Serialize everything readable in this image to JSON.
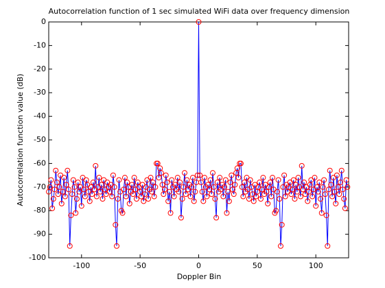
{
  "chart_data": {
    "type": "line",
    "title": "Autocorrelation function of 1 sec simulated WiFi data over frequency dimension",
    "x_label": "Doppler Bin",
    "y_label": "Autocorrelation function value (dB)",
    "x": [
      -128,
      -127,
      -126,
      -125,
      -124,
      -123,
      -122,
      -121,
      -120,
      -119,
      -118,
      -117,
      -116,
      -115,
      -114,
      -113,
      -112,
      -111,
      -110,
      -109,
      -108,
      -107,
      -106,
      -105,
      -104,
      -103,
      -102,
      -101,
      -100,
      -99,
      -98,
      -97,
      -96,
      -95,
      -94,
      -93,
      -92,
      -91,
      -90,
      -89,
      -88,
      -87,
      -86,
      -85,
      -84,
      -83,
      -82,
      -81,
      -80,
      -79,
      -78,
      -77,
      -76,
      -75,
      -74,
      -73,
      -72,
      -71,
      -70,
      -69,
      -68,
      -67,
      -66,
      -65,
      -64,
      -63,
      -62,
      -61,
      -60,
      -59,
      -58,
      -57,
      -56,
      -55,
      -54,
      -53,
      -52,
      -51,
      -50,
      -49,
      -48,
      -47,
      -46,
      -45,
      -44,
      -43,
      -42,
      -41,
      -40,
      -39,
      -38,
      -37,
      -36,
      -35,
      -34,
      -33,
      -32,
      -31,
      -30,
      -29,
      -28,
      -27,
      -26,
      -25,
      -24,
      -23,
      -22,
      -21,
      -20,
      -19,
      -18,
      -17,
      -16,
      -15,
      -14,
      -13,
      -12,
      -11,
      -10,
      -9,
      -8,
      -7,
      -6,
      -5,
      -4,
      -3,
      -2,
      -1,
      0,
      1,
      2,
      3,
      4,
      5,
      6,
      7,
      8,
      9,
      10,
      11,
      12,
      13,
      14,
      15,
      16,
      17,
      18,
      19,
      20,
      21,
      22,
      23,
      24,
      25,
      26,
      27,
      28,
      29,
      30,
      31,
      32,
      33,
      34,
      35,
      36,
      37,
      38,
      39,
      40,
      41,
      42,
      43,
      44,
      45,
      46,
      47,
      48,
      49,
      50,
      51,
      52,
      53,
      54,
      55,
      56,
      57,
      58,
      59,
      60,
      61,
      62,
      63,
      64,
      65,
      66,
      67,
      68,
      69,
      70,
      71,
      72,
      73,
      74,
      75,
      76,
      77,
      78,
      79,
      80,
      81,
      82,
      83,
      84,
      85,
      86,
      87,
      88,
      89,
      90,
      91,
      92,
      93,
      94,
      95,
      96,
      97,
      98,
      99,
      100,
      101,
      102,
      103,
      104,
      105,
      106,
      107,
      108,
      109,
      110,
      111,
      112,
      113,
      114,
      115,
      116,
      117,
      118,
      119,
      120,
      121,
      122,
      123,
      124,
      125,
      126,
      127
    ],
    "series": [
      {
        "color": "#0000ff",
        "marker_color": "#ff0000",
        "values": [
          -72,
          -70,
          -67,
          -79,
          -75,
          -71,
          -63,
          -68,
          -73,
          -70,
          -65,
          -77,
          -72,
          -66,
          -74,
          -69,
          -63,
          -71,
          -95,
          -82,
          -73,
          -67,
          -70,
          -81,
          -75,
          -68,
          -72,
          -70,
          -78,
          -66,
          -71,
          -74,
          -67,
          -69,
          -72,
          -76,
          -70,
          -73,
          -68,
          -71,
          -61,
          -74,
          -70,
          -66,
          -72,
          -69,
          -75,
          -67,
          -71,
          -73,
          -68,
          -70,
          -72,
          -69,
          -74,
          -65,
          -70,
          -86,
          -95,
          -75,
          -67,
          -72,
          -80,
          -81,
          -71,
          -66,
          -74,
          -68,
          -70,
          -77,
          -72,
          -69,
          -73,
          -66,
          -71,
          -75,
          -68,
          -70,
          -72,
          -74,
          -69,
          -76,
          -73,
          -70,
          -67,
          -75,
          -71,
          -66,
          -72,
          -68,
          -74,
          -70,
          -60,
          -60,
          -66,
          -62,
          -64,
          -69,
          -73,
          -71,
          -65,
          -68,
          -76,
          -72,
          -81,
          -67,
          -70,
          -74,
          -69,
          -71,
          -66,
          -72,
          -68,
          -83,
          -75,
          -70,
          -64,
          -73,
          -67,
          -71,
          -69,
          -74,
          -70,
          -66,
          -76,
          -72,
          -68,
          -65,
          0,
          -65,
          -68,
          -72,
          -76,
          -66,
          -70,
          -74,
          -69,
          -71,
          -67,
          -73,
          -64,
          -70,
          -75,
          -83,
          -68,
          -72,
          -66,
          -71,
          -69,
          -74,
          -70,
          -67,
          -81,
          -72,
          -76,
          -68,
          -65,
          -71,
          -73,
          -69,
          -64,
          -62,
          -66,
          -60,
          -60,
          -70,
          -74,
          -68,
          -72,
          -66,
          -71,
          -75,
          -67,
          -70,
          -73,
          -76,
          -69,
          -74,
          -72,
          -70,
          -68,
          -75,
          -71,
          -66,
          -73,
          -69,
          -72,
          -77,
          -70,
          -68,
          -74,
          -66,
          -71,
          -81,
          -80,
          -72,
          -67,
          -75,
          -95,
          -86,
          -70,
          -65,
          -74,
          -69,
          -72,
          -70,
          -68,
          -73,
          -71,
          -67,
          -75,
          -69,
          -72,
          -66,
          -70,
          -74,
          -61,
          -71,
          -68,
          -73,
          -70,
          -76,
          -72,
          -69,
          -67,
          -74,
          -71,
          -66,
          -78,
          -70,
          -72,
          -68,
          -75,
          -81,
          -70,
          -67,
          -73,
          -82,
          -95,
          -71,
          -63,
          -69,
          -74,
          -66,
          -72,
          -77,
          -65,
          -70,
          -73,
          -68,
          -63,
          -71,
          -75,
          -79,
          -67,
          -70
        ]
      }
    ],
    "xlim": [
      -128,
      128
    ],
    "xticks": [
      -100,
      -50,
      0,
      50,
      100
    ],
    "ylim": [
      -100,
      0
    ],
    "yticks": [
      -100,
      -90,
      -80,
      -70,
      -60,
      -50,
      -40,
      -30,
      -20,
      -10,
      0
    ],
    "grid": false
  }
}
